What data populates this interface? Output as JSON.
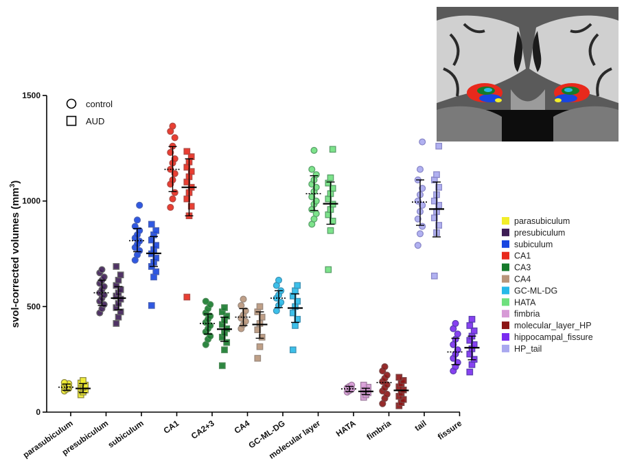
{
  "chart_data": {
    "type": "scatter",
    "title": "",
    "xlabel": "",
    "ylabel": "svol-corrected volumes (mm",
    "ylabel_sup": "3",
    "ylabel_suffix": ")",
    "ylim": [
      0,
      1500
    ],
    "yticks": [
      "0",
      "500",
      "1000",
      "1500"
    ],
    "grid": false,
    "categories": [
      "parasubiculum",
      "presubiculum",
      "subiculum",
      "CA1",
      "CA2+3",
      "CA4",
      "GC-ML-DG",
      "molecular layer",
      "HATA",
      "fimbria",
      "tail",
      "fissure"
    ],
    "group_legend": {
      "placement": "top-left",
      "items": [
        {
          "label": "control",
          "marker": "circle"
        },
        {
          "label": "AUD",
          "marker": "square"
        }
      ]
    },
    "region_legend": {
      "placement": "right",
      "items": [
        {
          "label": "parasubiculum",
          "color": "#f2ee2a"
        },
        {
          "label": "presubiculum",
          "color": "#3d1d55"
        },
        {
          "label": "subiculum",
          "color": "#1846e0"
        },
        {
          "label": "CA1",
          "color": "#e8291c"
        },
        {
          "label": "CA3",
          "color": "#157a2b"
        },
        {
          "label": "CA4",
          "color": "#b8957a"
        },
        {
          "label": "GC-ML-DG",
          "color": "#27b9e8"
        },
        {
          "label": "HATA",
          "color": "#6fe07e"
        },
        {
          "label": "fimbria",
          "color": "#d79ad6"
        },
        {
          "label": "molecular_layer_HP",
          "color": "#8c1414"
        },
        {
          "label": "hippocampal_fissure",
          "color": "#7a2cf0"
        },
        {
          "label": "HP_tail",
          "color": "#a9a8ef"
        }
      ]
    },
    "series": [
      {
        "name": "control",
        "marker": "circle",
        "means": [
          118,
          565,
          812,
          1150,
          420,
          450,
          540,
          1035,
          110,
          140,
          995,
          285
        ],
        "sd_low": [
          103,
          505,
          760,
          1045,
          370,
          410,
          495,
          955,
          97,
          null,
          885,
          225
        ],
        "sd_high": [
          133,
          625,
          870,
          1258,
          465,
          490,
          575,
          1120,
          122,
          null,
          1100,
          350
        ],
        "points": [
          [
            100,
            108,
            112,
            115,
            118,
            122,
            125,
            130,
            135,
            140
          ],
          [
            470,
            490,
            510,
            525,
            540,
            555,
            565,
            580,
            595,
            610,
            625,
            640,
            660,
            675
          ],
          [
            720,
            745,
            765,
            780,
            795,
            810,
            825,
            840,
            860,
            880,
            910,
            980
          ],
          [
            970,
            1010,
            1040,
            1080,
            1100,
            1130,
            1150,
            1180,
            1200,
            1230,
            1260,
            1300,
            1330,
            1355
          ],
          [
            320,
            345,
            360,
            380,
            395,
            410,
            425,
            440,
            455,
            470,
            490,
            510,
            525
          ],
          [
            395,
            415,
            430,
            445,
            460,
            480,
            505,
            535
          ],
          [
            480,
            505,
            520,
            540,
            555,
            575,
            600,
            625
          ],
          [
            890,
            915,
            940,
            960,
            985,
            1000,
            1020,
            1045,
            1065,
            1080,
            1100,
            1125,
            1150,
            1240
          ],
          [
            95,
            102,
            108,
            115,
            122,
            128
          ],
          [
            40,
            65,
            85,
            100,
            115,
            130,
            145,
            160,
            175,
            195,
            215
          ],
          [
            790,
            845,
            880,
            915,
            950,
            980,
            1000,
            1030,
            1060,
            1100,
            1150,
            1280
          ],
          [
            195,
            215,
            235,
            255,
            275,
            295,
            320,
            345,
            370,
            395,
            420
          ]
        ]
      },
      {
        "name": "AUD",
        "marker": "square",
        "means": [
          112,
          540,
          752,
          1065,
          393,
          415,
          493,
          987,
          98,
          103,
          962,
          305
        ],
        "sd_low": [
          92,
          485,
          690,
          930,
          335,
          350,
          425,
          890,
          83,
          null,
          830,
          248
        ],
        "sd_high": [
          135,
          595,
          832,
          1200,
          450,
          475,
          560,
          1090,
          113,
          null,
          1090,
          360
        ],
        "points": [
          [
            82,
            95,
            105,
            112,
            118,
            128,
            138,
            150
          ],
          [
            420,
            450,
            475,
            495,
            515,
            535,
            550,
            565,
            580,
            600,
            625,
            650,
            690
          ],
          [
            505,
            640,
            665,
            690,
            710,
            730,
            750,
            770,
            790,
            815,
            840,
            860,
            890
          ],
          [
            545,
            930,
            975,
            1010,
            1040,
            1065,
            1090,
            1115,
            1140,
            1160,
            1185,
            1210,
            1235
          ],
          [
            220,
            295,
            330,
            355,
            375,
            395,
            415,
            435,
            455,
            475,
            495
          ],
          [
            255,
            310,
            355,
            390,
            420,
            450,
            475,
            500
          ],
          [
            295,
            410,
            440,
            470,
            500,
            525,
            550,
            575,
            600
          ],
          [
            675,
            860,
            905,
            935,
            960,
            985,
            1010,
            1035,
            1060,
            1085,
            1110,
            1245
          ],
          [
            70,
            82,
            92,
            100,
            108,
            118,
            128
          ],
          [
            30,
            45,
            60,
            75,
            90,
            105,
            120,
            135,
            150,
            165
          ],
          [
            645,
            850,
            885,
            920,
            950,
            980,
            1000,
            1030,
            1065,
            1100,
            1125,
            1260
          ],
          [
            190,
            225,
            250,
            275,
            300,
            320,
            340,
            360,
            385,
            410,
            440
          ]
        ]
      }
    ]
  }
}
